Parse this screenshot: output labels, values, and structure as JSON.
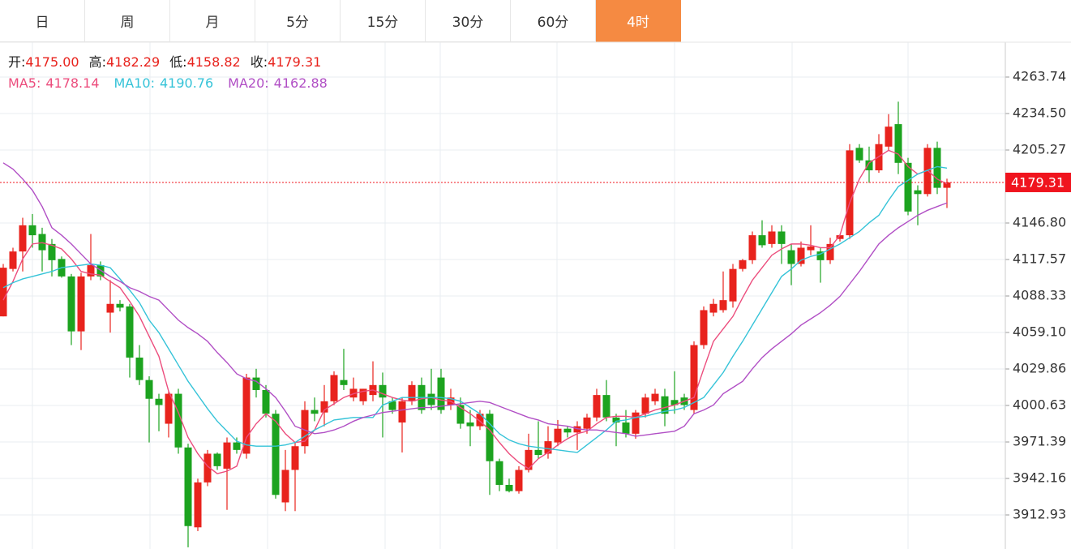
{
  "tabs": [
    "日",
    "周",
    "月",
    "5分",
    "15分",
    "30分",
    "60分",
    "4时"
  ],
  "active_tab": 7,
  "header": [
    {
      "label": "开:",
      "value": "4175.00"
    },
    {
      "label": "高:",
      "value": "4182.29"
    },
    {
      "label": "低:",
      "value": "4158.82"
    },
    {
      "label": "收:",
      "value": "4179.31"
    }
  ],
  "chart_data": {
    "type": "candlestick",
    "up_color": "#e8231d",
    "down_color": "#1ca31f",
    "open": [
      4072,
      4110,
      4124,
      4145,
      4138,
      4130,
      4118,
      4104,
      4060,
      4104,
      4113,
      4075,
      4082,
      4080,
      4039,
      4021,
      4006,
      3986,
      4010,
      3967,
      3903,
      3939,
      3962,
      3950,
      3971,
      3962,
      4023,
      4013,
      3994,
      3923,
      3949,
      3968,
      3997,
      3995,
      4004,
      4021,
      4007,
      4004,
      4009,
      4017,
      4004,
      3987,
      4004,
      4017,
      4010,
      4023,
      4001,
      4001,
      3987,
      3984,
      3994,
      3956,
      3937,
      3932,
      3949,
      3965,
      3962,
      3971,
      3982,
      3979,
      3982,
      3991,
      4009,
      3991,
      3987,
      3978,
      3994,
      4004,
      4008,
      4005,
      4007,
      3997,
      4049,
      4075,
      4077,
      4084,
      4110,
      4117,
      4137,
      4130,
      4140,
      4125,
      4114,
      4125,
      4124,
      4117,
      4134,
      4137,
      4207,
      4197,
      4189,
      4208,
      4226,
      4195,
      4173,
      4170,
      4207,
      4175
    ],
    "high": [
      4114,
      4127,
      4151,
      4154,
      4143,
      4134,
      4120,
      4106,
      4107,
      4138,
      4116,
      4101,
      4085,
      4082,
      4049,
      4024,
      4010,
      4012,
      4014,
      3970,
      3942,
      3965,
      3963,
      3975,
      3975,
      4026,
      4030,
      4017,
      3997,
      3965,
      3971,
      4004,
      4007,
      4017,
      4028,
      4046,
      4023,
      4014,
      4036,
      4027,
      4007,
      4007,
      4020,
      4023,
      4030,
      4030,
      4014,
      4007,
      3997,
      3997,
      3997,
      3958,
      3942,
      3952,
      3978,
      3988,
      3984,
      3989,
      3984,
      3988,
      3994,
      4014,
      4021,
      3994,
      3997,
      3997,
      4010,
      4014,
      4014,
      4028,
      4010,
      4052,
      4080,
      4086,
      4108,
      4114,
      4118,
      4140,
      4149,
      4145,
      4145,
      4130,
      4132,
      4145,
      4127,
      4135,
      4138,
      4210,
      4210,
      4208,
      4218,
      4234,
      4244,
      4199,
      4177,
      4210,
      4212,
      4182.29
    ],
    "low": [
      4072,
      4108,
      4108,
      4127,
      4108,
      4104,
      4103,
      4049,
      4045,
      4101,
      4101,
      4059,
      4076,
      4023,
      4017,
      3971,
      3980,
      3975,
      3962,
      3887,
      3900,
      3936,
      3949,
      3917,
      3962,
      3958,
      4007,
      3991,
      3926,
      3916,
      3916,
      3962,
      3988,
      3984,
      4001,
      4013,
      4004,
      4001,
      4004,
      3975,
      3994,
      3963,
      4001,
      3994,
      3997,
      3994,
      3997,
      3982,
      3968,
      3981,
      3929,
      3932,
      3931,
      3930,
      3947,
      3958,
      3958,
      3968,
      3975,
      3965,
      3978,
      3988,
      3988,
      3968,
      3975,
      3974,
      3991,
      4001,
      3984,
      3994,
      3997,
      3994,
      4046,
      4072,
      4075,
      4079,
      4108,
      4114,
      4127,
      4127,
      4114,
      4097,
      4112,
      4121,
      4099,
      4114,
      4132,
      4134,
      4195,
      4179,
      4187,
      4205,
      4186,
      4153,
      4145,
      4168,
      4170,
      4158.82
    ],
    "close": [
      4111,
      4124,
      4145,
      4137,
      4125,
      4117,
      4104,
      4060,
      4104,
      4113,
      4104,
      4082,
      4079,
      4039,
      4021,
      4006,
      4001,
      4010,
      3967,
      3904,
      3939,
      3962,
      3952,
      3971,
      3965,
      4023,
      4013,
      3994,
      3929,
      3949,
      3968,
      3997,
      3994,
      4004,
      4025,
      4017,
      4014,
      4014,
      4017,
      4007,
      3997,
      4004,
      4017,
      3997,
      4001,
      3997,
      4007,
      3986,
      3984,
      3994,
      3956,
      3937,
      3932,
      3949,
      3965,
      3961,
      3972,
      3982,
      3979,
      3984,
      3991,
      4009,
      3991,
      3987,
      3978,
      3995,
      4007,
      4010,
      3994,
      4001,
      4001,
      4049,
      4077,
      4082,
      4085,
      4110,
      4117,
      4137,
      4129,
      4140,
      4130,
      4114,
      4127,
      4128,
      4117,
      4130,
      4137,
      4205,
      4197,
      4189,
      4210,
      4224,
      4195,
      4156,
      4170,
      4207,
      4175,
      4179.31
    ],
    "legend_separator": ":",
    "series": [
      {
        "name": "MA5",
        "color": "#ec4d7d",
        "value_labels": "4178.14",
        "values": [
          4085,
          4100,
          4118,
          4130,
          4131,
          4129,
          4126,
          4118,
          4108,
          4106,
          4105,
          4100,
          4095,
          4084,
          4072,
          4056,
          4040,
          4012,
          3995,
          3975,
          3962,
          3952,
          3946,
          3948,
          3952,
          3975,
          3986,
          3994,
          3988,
          3978,
          3971,
          3972,
          3981,
          3997,
          4002,
          4007,
          4010,
          4012,
          4013,
          4010,
          4007,
          4005,
          4004,
          4006,
          4007,
          4005,
          4004,
          3999,
          3994,
          3988,
          3981,
          3971,
          3962,
          3955,
          3950,
          3958,
          3963,
          3969,
          3974,
          3978,
          3980,
          3986,
          3991,
          3992,
          3992,
          3991,
          3994,
          3997,
          3999,
          4001,
          4004,
          4007,
          4030,
          4052,
          4062,
          4072,
          4087,
          4101,
          4111,
          4121,
          4126,
          4130,
          4130,
          4129,
          4127,
          4127,
          4137,
          4163,
          4182,
          4195,
          4200,
          4205,
          4202,
          4192,
          4186,
          4189,
          4182,
          4178.14
        ]
      },
      {
        "name": "MA10",
        "color": "#35c3d8",
        "value_labels": "4190.76",
        "values": [
          4095,
          4099,
          4102,
          4104,
          4106,
          4108,
          4111,
          4112,
          4113,
          4114,
          4113,
          4111,
          4102,
          4093,
          4083,
          4069,
          4059,
          4046,
          4033,
          4020,
          4009,
          3998,
          3988,
          3980,
          3972,
          3969,
          3968,
          3968,
          3968,
          3969,
          3971,
          3976,
          3981,
          3985,
          3989,
          3990,
          3991,
          3991,
          3991,
          4001,
          4004,
          4007,
          4007,
          4007,
          4007,
          4007,
          4006,
          4004,
          3999,
          3994,
          3986,
          3978,
          3973,
          3970,
          3968,
          3967,
          3966,
          3965,
          3964,
          3963,
          3969,
          3975,
          3981,
          3988,
          3989,
          3991,
          3992,
          3994,
          3996,
          3997,
          3999,
          4003,
          4007,
          4017,
          4027,
          4040,
          4052,
          4065,
          4078,
          4091,
          4104,
          4110,
          4117,
          4120,
          4122,
          4126,
          4130,
          4135,
          4140,
          4147,
          4153,
          4165,
          4176,
          4181,
          4186,
          4189,
          4192,
          4190.76
        ]
      },
      {
        "name": "MA20",
        "color": "#b14fc5",
        "value_labels": "4162.88",
        "values": [
          4195,
          4190,
          4182,
          4173,
          4160,
          4143,
          4137,
          4130,
          4122,
          4114,
          4109,
          4104,
          4100,
          4095,
          4092,
          4088,
          4085,
          4077,
          4069,
          4063,
          4058,
          4052,
          4043,
          4035,
          4026,
          4022,
          4020,
          4014,
          4007,
          3996,
          3984,
          3981,
          3978,
          3979,
          3981,
          3984,
          3988,
          3991,
          3993,
          3995,
          3996,
          3997,
          3998,
          3999,
          3999,
          4000,
          4001,
          4002,
          4003,
          4004,
          4003,
          4000,
          3997,
          3994,
          3991,
          3989,
          3986,
          3985,
          3984,
          3982,
          3981,
          3981,
          3980,
          3979,
          3978,
          3976,
          3977,
          3978,
          3979,
          3980,
          3984,
          3994,
          3997,
          4001,
          4010,
          4015,
          4020,
          4030,
          4039,
          4046,
          4052,
          4058,
          4065,
          4070,
          4075,
          4081,
          4088,
          4098,
          4108,
          4119,
          4130,
          4137,
          4143,
          4148,
          4153,
          4157,
          4160,
          4162.88
        ]
      }
    ],
    "last_price": 4179.31,
    "last_price_color": "#f0141e",
    "ylim": [
      3885.65,
      4291.67
    ],
    "yticks": [
      3912.93,
      3942.16,
      3971.39,
      4000.63,
      4029.86,
      {
        "value": 4059.1,
        "label": "4059.10"
      },
      4088.33,
      4117.57,
      {
        "value": 4146.8,
        "label": "4146.80"
      },
      4205.27,
      {
        "value": 4234.5,
        "label": "4234.50"
      },
      4263.74
    ],
    "grid": true
  }
}
